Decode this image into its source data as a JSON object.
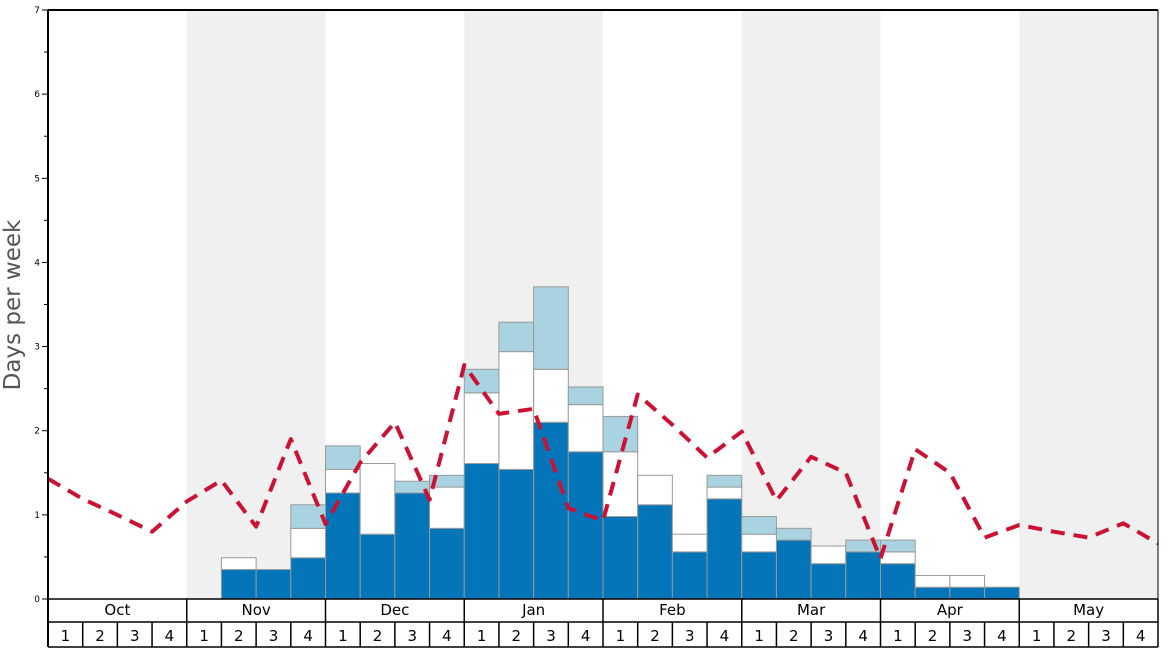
{
  "chart_data": {
    "type": "bar",
    "title": "",
    "xlabel": "",
    "ylabel": "Days per week",
    "ylim": [
      0,
      7
    ],
    "yticks": [
      "0",
      "1",
      "2",
      "3",
      "4",
      "5",
      "6",
      "7"
    ],
    "months": [
      "Oct",
      "Nov",
      "Dec",
      "Jan",
      "Feb",
      "Mar",
      "Apr",
      "May"
    ],
    "week_labels": [
      "1",
      "2",
      "3",
      "4"
    ],
    "stacked": true,
    "colors": {
      "series_dark": "#0375b8",
      "series_white": "#ffffff",
      "series_light": "#a9d3e0",
      "line": "#cc1133",
      "band": "#f0f0f0",
      "bar_edge": "#999999"
    },
    "series": [
      {
        "values": [
          0,
          0,
          0,
          0,
          0,
          0.35,
          0.35,
          0.49,
          1.26,
          0.77,
          1.26,
          0.84,
          1.61,
          1.54,
          2.1,
          1.75,
          0.98,
          1.12,
          0.56,
          1.19,
          0.56,
          0.7,
          0.42,
          0.56,
          0.42,
          0.14,
          0.14,
          0.14,
          0,
          0,
          0,
          0
        ]
      },
      {
        "values": [
          0,
          0,
          0,
          0,
          0,
          0.14,
          0,
          0.35,
          0.28,
          0.84,
          0,
          0.49,
          0.84,
          1.4,
          0.63,
          0.56,
          0.77,
          0.35,
          0.21,
          0.14,
          0.21,
          0,
          0.21,
          0,
          0.14,
          0.14,
          0.14,
          0,
          0,
          0,
          0,
          0
        ]
      },
      {
        "values": [
          0,
          0,
          0,
          0,
          0,
          0,
          0,
          0.28,
          0.28,
          0,
          0.14,
          0.14,
          0.28,
          0.35,
          0.98,
          0.21,
          0.42,
          0,
          0,
          0.14,
          0.21,
          0.14,
          0,
          0.14,
          0.14,
          0,
          0,
          0,
          0,
          0,
          0,
          0
        ]
      }
    ],
    "line_values": [
      1.43,
      1.19,
      1.0,
      0.8,
      1.16,
      1.41,
      0.86,
      1.9,
      0.89,
      1.62,
      2.1,
      1.18,
      2.78,
      2.2,
      2.26,
      1.08,
      0.93,
      2.43,
      2.07,
      1.68,
      1.99,
      1.17,
      1.69,
      1.5,
      0.48,
      1.78,
      1.5,
      0.73,
      0.88,
      0.8,
      0.73,
      0.9,
      0.66
    ]
  }
}
